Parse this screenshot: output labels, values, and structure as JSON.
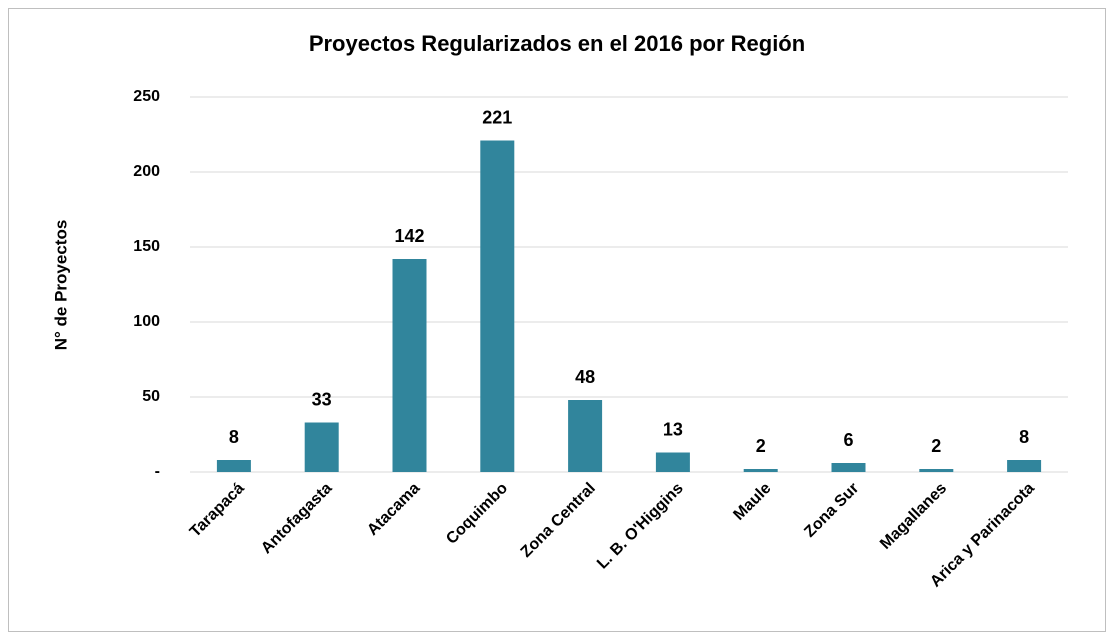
{
  "chart_data": {
    "type": "bar",
    "title": "Proyectos Regularizados en el 2016 por Región",
    "y_label": "N° de Proyectos",
    "categories": [
      "Tarapacá",
      "Antofagasta",
      "Atacama",
      "Coquimbo",
      "Zona Central",
      "L. B. O'Higgins",
      "Maule",
      "Zona Sur",
      "Magallanes",
      "Arica y Parinacota"
    ],
    "values": [
      8,
      33,
      142,
      221,
      48,
      13,
      2,
      6,
      2,
      8
    ],
    "color": "#31859c",
    "ylim": [
      0,
      250
    ],
    "yticks": [
      {
        "value": 0,
        "label": "-"
      },
      50,
      100,
      150,
      200,
      250
    ],
    "grid": true
  }
}
